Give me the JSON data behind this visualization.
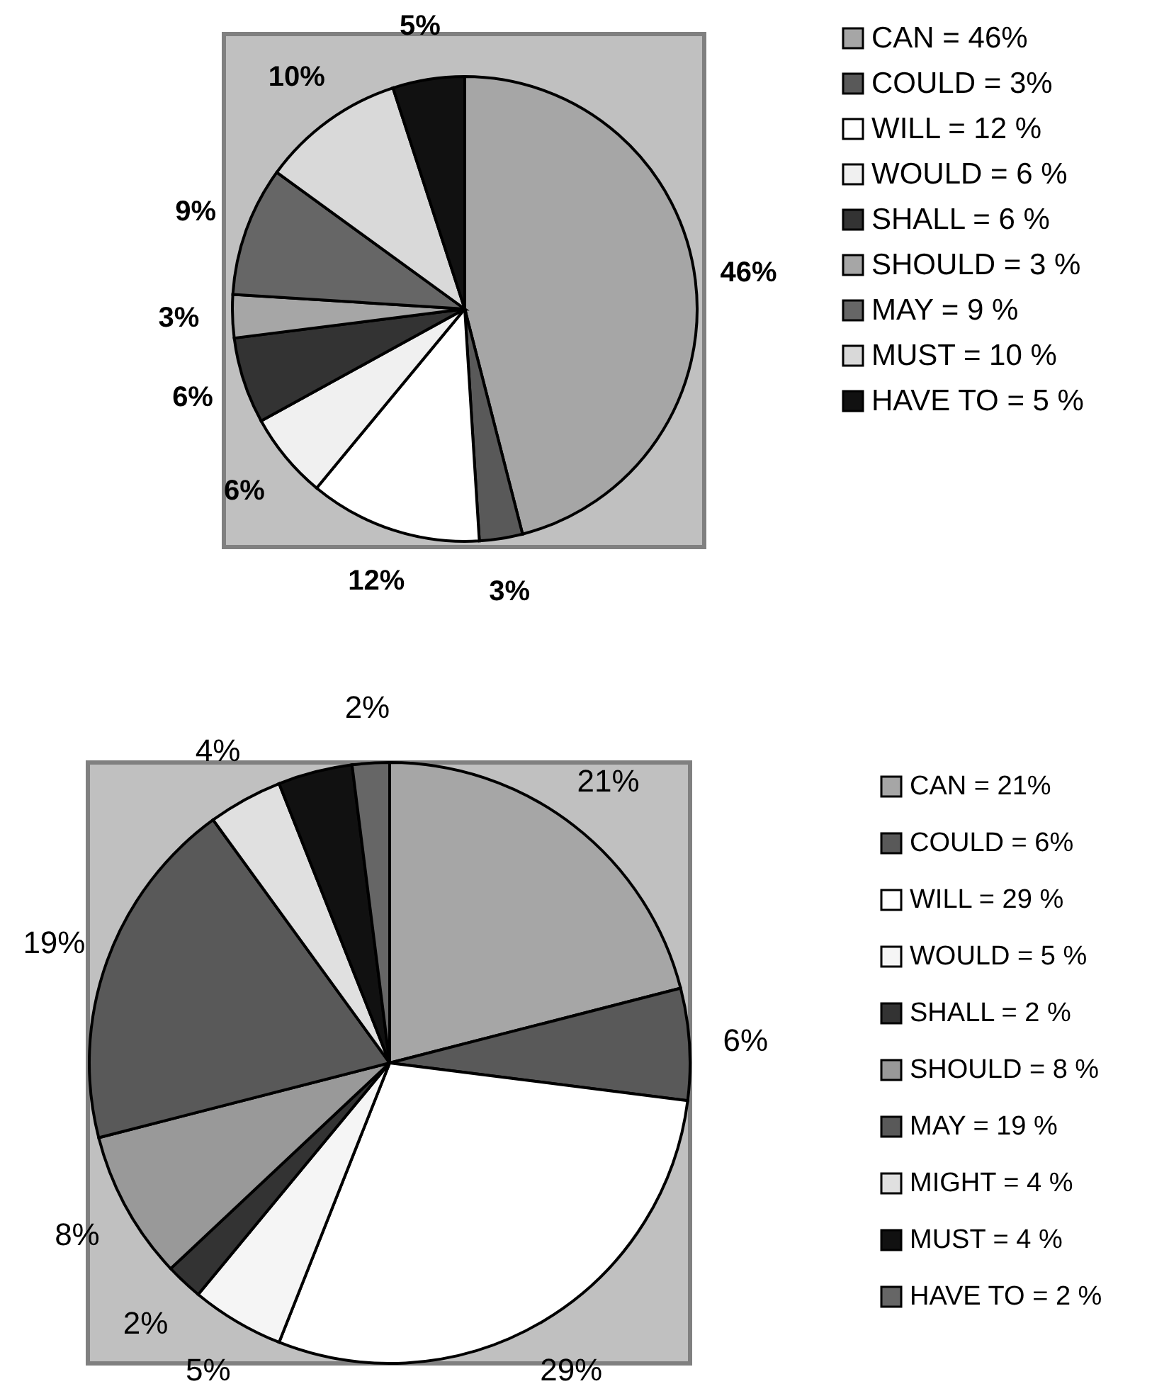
{
  "chart_data": [
    {
      "type": "pie",
      "categories": [
        "CAN = 46%",
        "COULD = 3%",
        "WILL = 12 %",
        "WOULD = 6 %",
        "SHALL = 6 %",
        "SHOULD = 3 %",
        "MAY = 9 %",
        "MUST = 10 %",
        "HAVE TO = 5 %"
      ],
      "values": [
        46,
        3,
        12,
        6,
        6,
        3,
        9,
        10,
        5
      ],
      "colors": [
        "#a6a6a6",
        "#595959",
        "#ffffff",
        "#f0f0f0",
        "#333333",
        "#a6a6a6",
        "#666666",
        "#d9d9d9",
        "#111111"
      ],
      "value_labels": [
        "46%",
        "3%",
        "12%",
        "6%",
        "6%",
        "3%",
        "9%",
        "10%",
        "5%"
      ],
      "legend": "right"
    },
    {
      "type": "pie",
      "categories": [
        "CAN = 21%",
        "COULD = 6%",
        "WILL = 29 %",
        "WOULD = 5 %",
        "SHALL = 2 %",
        "SHOULD = 8 %",
        "MAY = 19 %",
        "MIGHT = 4 %",
        "MUST = 4 %",
        "HAVE TO = 2 %"
      ],
      "values": [
        21,
        6,
        29,
        5,
        2,
        8,
        19,
        4,
        4,
        2
      ],
      "colors": [
        "#a6a6a6",
        "#595959",
        "#ffffff",
        "#f5f5f5",
        "#333333",
        "#999999",
        "#595959",
        "#e0e0e0",
        "#111111",
        "#666666"
      ],
      "value_labels": [
        "21%",
        "6%",
        "29%",
        "5%",
        "2%",
        "8%",
        "19%",
        "4%",
        null,
        "2%"
      ],
      "legend": "right"
    }
  ]
}
